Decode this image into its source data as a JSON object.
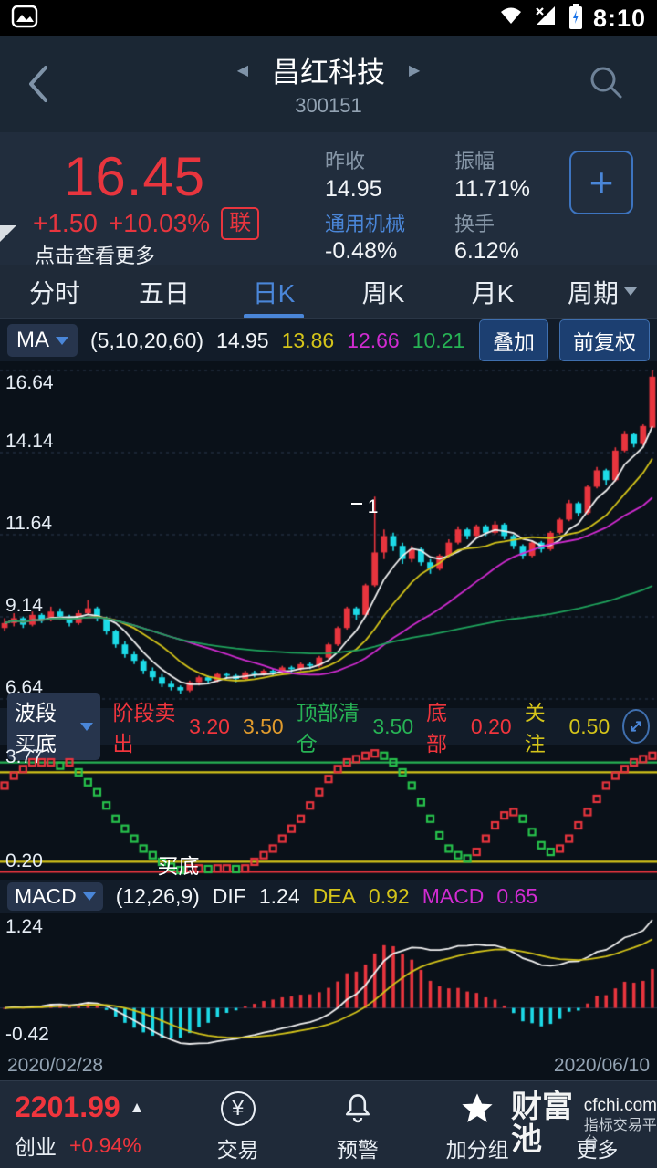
{
  "colors": {
    "up_red": "#e8353e",
    "down_cyan": "#1ddbe8",
    "accent_blue": "#4a86d8",
    "ma5_white": "#f0f0f0",
    "ma10_yellow": "#d4c41a",
    "ma20_magenta": "#d02bd0",
    "ma60_green": "#1fa35c",
    "band_green": "#27b355",
    "warn_orange": "#e09b2d",
    "bg_dark": "#0a1119"
  },
  "status_bar": {
    "time": "8:10"
  },
  "header": {
    "title": "昌红科技",
    "code": "300151"
  },
  "quote": {
    "price": "16.45",
    "change": "+1.50",
    "change_pct": "+10.03%",
    "badge": "联",
    "more": "点击查看更多",
    "stats": {
      "prev_close_label": "昨收",
      "prev_close": "14.95",
      "amplitude_label": "振幅",
      "amplitude": "11.71%",
      "sector": "通用机械",
      "sector_change": "-0.48%",
      "turnover_label": "换手",
      "turnover": "6.12%"
    }
  },
  "tabs": {
    "items": [
      {
        "label": "分时"
      },
      {
        "label": "五日"
      },
      {
        "label": "日K"
      },
      {
        "label": "周K"
      },
      {
        "label": "月K"
      },
      {
        "label": "周期"
      }
    ],
    "active_index": 2
  },
  "ma_bar": {
    "name": "MA",
    "params": "(5,10,20,60)",
    "ma5": "14.95",
    "ma10": "13.86",
    "ma20": "12.66",
    "ma60": "10.21",
    "overlay": "叠加",
    "adjust": "前复权"
  },
  "band_bar": {
    "name": "波段买底",
    "sell_label": "阶段卖出",
    "sell_value": "3.20",
    "sell_value2": "3.50",
    "clear_label": "顶部清仓",
    "clear_value": "3.50",
    "bottom_label": "底部",
    "bottom_value": "0.20",
    "watch_label": "关注",
    "watch_value": "0.50"
  },
  "macd_bar": {
    "name": "MACD",
    "params": "(12,26,9)",
    "dif_label": "DIF",
    "dif": "1.24",
    "dea_label": "DEA",
    "dea": "0.92",
    "macd_label": "MACD",
    "macd": "0.65"
  },
  "axis": {
    "start": "2020/02/28",
    "end": "2020/06/10"
  },
  "bottom_nav": {
    "index_value": "2201.99",
    "index_name": "创业",
    "index_change": "+0.94%",
    "trade": "交易",
    "alert": "预警",
    "add_group": "加分组",
    "more": "更多",
    "watermark": {
      "brand": "财富池",
      "domain": "cfchi.com",
      "tagline": "指标交易平台"
    }
  },
  "chart_data": [
    {
      "type": "candlestick",
      "x_start": "2020/02/28",
      "x_end": "2020/06/10",
      "ymin": 6.64,
      "ymax": 16.64,
      "grid": [
        16.64,
        14.14,
        11.64,
        9.14,
        6.64
      ],
      "ylabels": [
        "16.64",
        "14.14",
        "11.64",
        "9.14",
        "6.64"
      ],
      "up_color": "#e8353e",
      "down_color": "#1ddbe8",
      "ma": [
        {
          "period": 5,
          "color": "#f0f0f0"
        },
        {
          "period": 10,
          "color": "#d4c41a"
        },
        {
          "period": 20,
          "color": "#d02bd0"
        },
        {
          "period": 60,
          "color": "#1fa35c"
        }
      ],
      "annotation": {
        "text": "1",
        "index": 40,
        "price": 13.3
      },
      "candles": [
        [
          8.8,
          9.1,
          8.7,
          8.95
        ],
        [
          8.95,
          9.25,
          8.85,
          9.1
        ],
        [
          9.1,
          9.15,
          8.8,
          8.9
        ],
        [
          8.9,
          9.3,
          8.85,
          9.2
        ],
        [
          9.2,
          9.25,
          8.95,
          9.05
        ],
        [
          9.05,
          9.45,
          9.0,
          9.3
        ],
        [
          9.3,
          9.4,
          9.05,
          9.15
        ],
        [
          9.15,
          9.2,
          8.85,
          8.95
        ],
        [
          8.95,
          9.35,
          8.9,
          9.25
        ],
        [
          9.25,
          9.65,
          9.2,
          9.4
        ],
        [
          9.4,
          9.45,
          9.0,
          9.1
        ],
        [
          9.1,
          9.15,
          8.6,
          8.7
        ],
        [
          8.7,
          8.75,
          8.2,
          8.3
        ],
        [
          8.3,
          8.4,
          7.9,
          8.0
        ],
        [
          8.0,
          8.1,
          7.7,
          7.8
        ],
        [
          7.8,
          7.85,
          7.4,
          7.5
        ],
        [
          7.5,
          7.6,
          7.2,
          7.3
        ],
        [
          7.3,
          7.4,
          7.0,
          7.1
        ],
        [
          7.1,
          7.2,
          6.9,
          7.0
        ],
        [
          7.0,
          7.05,
          6.8,
          6.9
        ],
        [
          6.9,
          7.2,
          6.85,
          7.15
        ],
        [
          7.15,
          7.35,
          7.05,
          7.3
        ],
        [
          7.3,
          7.35,
          7.1,
          7.2
        ],
        [
          7.2,
          7.45,
          7.15,
          7.4
        ],
        [
          7.4,
          7.45,
          7.25,
          7.35
        ],
        [
          7.35,
          7.4,
          7.15,
          7.25
        ],
        [
          7.25,
          7.5,
          7.2,
          7.45
        ],
        [
          7.45,
          7.5,
          7.3,
          7.4
        ],
        [
          7.4,
          7.55,
          7.35,
          7.5
        ],
        [
          7.5,
          7.55,
          7.35,
          7.45
        ],
        [
          7.45,
          7.65,
          7.4,
          7.6
        ],
        [
          7.6,
          7.65,
          7.45,
          7.55
        ],
        [
          7.55,
          7.75,
          7.5,
          7.7
        ],
        [
          7.7,
          7.75,
          7.55,
          7.65
        ],
        [
          7.65,
          7.95,
          7.6,
          7.9
        ],
        [
          7.9,
          8.35,
          7.85,
          8.3
        ],
        [
          8.3,
          8.85,
          8.25,
          8.8
        ],
        [
          8.8,
          9.45,
          8.75,
          9.4
        ],
        [
          9.4,
          9.45,
          9.05,
          9.2
        ],
        [
          9.2,
          10.15,
          9.15,
          10.1
        ],
        [
          10.1,
          12.8,
          10.05,
          11.1
        ],
        [
          11.1,
          11.8,
          10.9,
          11.6
        ],
        [
          11.6,
          11.7,
          11.15,
          11.3
        ],
        [
          11.3,
          11.4,
          10.75,
          10.9
        ],
        [
          10.9,
          11.3,
          10.8,
          11.2
        ],
        [
          11.2,
          11.25,
          10.7,
          10.8
        ],
        [
          10.8,
          10.9,
          10.45,
          10.6
        ],
        [
          10.6,
          11.05,
          10.55,
          11.0
        ],
        [
          11.0,
          11.5,
          10.95,
          11.4
        ],
        [
          11.4,
          11.9,
          11.35,
          11.8
        ],
        [
          11.8,
          11.85,
          11.5,
          11.6
        ],
        [
          11.6,
          11.95,
          11.55,
          11.9
        ],
        [
          11.9,
          11.95,
          11.6,
          11.7
        ],
        [
          11.7,
          12.05,
          11.65,
          11.95
        ],
        [
          11.95,
          12.0,
          11.5,
          11.6
        ],
        [
          11.6,
          11.65,
          11.2,
          11.3
        ],
        [
          11.3,
          11.35,
          10.9,
          11.0
        ],
        [
          11.0,
          11.45,
          10.95,
          11.4
        ],
        [
          11.4,
          11.45,
          11.1,
          11.2
        ],
        [
          11.2,
          11.75,
          11.15,
          11.7
        ],
        [
          11.7,
          12.15,
          11.65,
          12.1
        ],
        [
          12.1,
          12.7,
          12.05,
          12.6
        ],
        [
          12.6,
          12.65,
          12.2,
          12.3
        ],
        [
          12.3,
          13.15,
          12.25,
          13.1
        ],
        [
          13.1,
          13.7,
          13.05,
          13.6
        ],
        [
          13.6,
          13.65,
          13.15,
          13.3
        ],
        [
          13.3,
          14.3,
          13.25,
          14.2
        ],
        [
          14.2,
          14.8,
          14.15,
          14.7
        ],
        [
          14.7,
          14.75,
          14.3,
          14.4
        ],
        [
          14.4,
          15.0,
          14.35,
          14.95
        ],
        [
          14.9,
          16.64,
          14.89,
          16.45
        ]
      ]
    },
    {
      "type": "step-bar",
      "name": "波段买底",
      "ymin": 0.1,
      "ymax": 3.9,
      "ylabel_top": "3.77",
      "ylabel_bottom": "0.20",
      "up_color": "#e8353e",
      "down_color": "#27c24c",
      "hlines": [
        {
          "value": 3.5,
          "color": "#27b355"
        },
        {
          "value": 3.2,
          "color": "#d4c41a"
        },
        {
          "value": 0.5,
          "color": "#d4c41a"
        },
        {
          "value": 0.2,
          "color": "#e8353e"
        }
      ],
      "annotation": {
        "text": "买底",
        "index": 17
      },
      "values": [
        2.8,
        3.1,
        3.3,
        3.5,
        3.5,
        3.5,
        3.4,
        3.5,
        3.2,
        2.9,
        2.6,
        2.2,
        1.8,
        1.5,
        1.2,
        0.9,
        0.7,
        0.5,
        0.35,
        0.25,
        0.3,
        0.3,
        0.28,
        0.3,
        0.3,
        0.28,
        0.3,
        0.5,
        0.7,
        0.9,
        1.2,
        1.5,
        1.8,
        2.2,
        2.6,
        3.0,
        3.3,
        3.5,
        3.6,
        3.7,
        3.77,
        3.7,
        3.5,
        3.2,
        2.8,
        2.3,
        1.8,
        1.3,
        0.9,
        0.7,
        0.6,
        0.8,
        1.2,
        1.6,
        1.9,
        2.0,
        1.8,
        1.4,
        1.0,
        0.8,
        0.9,
        1.2,
        1.6,
        2.0,
        2.4,
        2.8,
        3.1,
        3.3,
        3.5,
        3.6,
        3.7
      ]
    },
    {
      "type": "macd",
      "params": [
        12,
        26,
        9
      ],
      "ylabel_top": "1.24",
      "ylabel_bottom": "-0.42",
      "dif_color": "#f0f0f0",
      "dea_color": "#d4c41a",
      "up_color": "#e8353e",
      "down_color": "#1ddbe8"
    }
  ]
}
